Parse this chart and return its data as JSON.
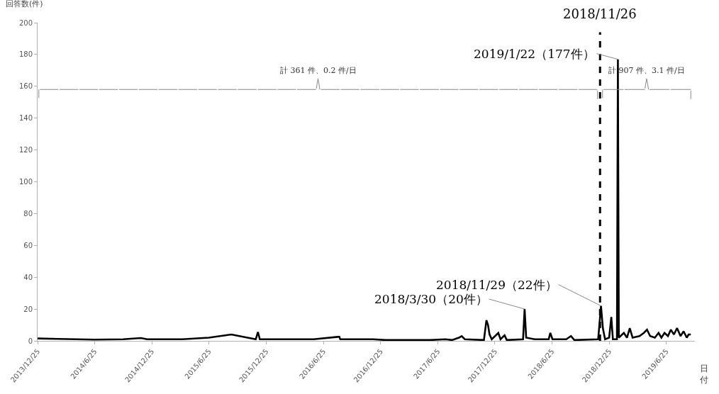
{
  "chart_data": {
    "type": "line",
    "ylabel": "回答数(件)",
    "xlabel": "日付",
    "x": [
      "2013-12-25",
      "2014-03-01",
      "2014-06-25",
      "2014-09-25",
      "2014-11-20",
      "2014-12-10",
      "2015-04-01",
      "2015-06-25",
      "2015-09-05",
      "2015-11-22",
      "2015-11-29",
      "2015-12-05",
      "2016-05-25",
      "2016-08-10",
      "2016-08-15",
      "2016-08-18",
      "2016-12-01",
      "2017-01-10",
      "2017-06-01",
      "2017-07-20",
      "2017-08-10",
      "2017-09-01",
      "2017-09-10",
      "2017-09-20",
      "2017-11-20",
      "2017-11-28",
      "2017-12-03",
      "2017-12-08",
      "2017-12-15",
      "2018-01-05",
      "2018-01-12",
      "2018-01-25",
      "2018-02-01",
      "2018-03-25",
      "2018-03-30",
      "2018-04-04",
      "2018-05-01",
      "2018-06-15",
      "2018-06-20",
      "2018-06-27",
      "2018-08-10",
      "2018-08-25",
      "2018-09-05",
      "2018-11-20",
      "2018-11-29",
      "2018-12-05",
      "2018-12-12",
      "2018-12-25",
      "2019-01-01",
      "2019-01-06",
      "2019-01-19",
      "2019-01-22",
      "2019-01-25",
      "2019-02-10",
      "2019-02-20",
      "2019-03-01",
      "2019-03-10",
      "2019-04-01",
      "2019-04-15",
      "2019-04-25",
      "2019-05-05",
      "2019-05-20",
      "2019-06-01",
      "2019-06-10",
      "2019-06-20",
      "2019-07-01",
      "2019-07-10",
      "2019-07-20",
      "2019-07-30",
      "2019-08-10",
      "2019-08-20",
      "2019-08-30",
      "2019-09-05",
      "2019-09-12"
    ],
    "series": [
      {
        "color": "#000000",
        "values": [
          1.5,
          1.2,
          0.8,
          1,
          1.8,
          1,
          1,
          2,
          4,
          1,
          5.5,
          1,
          1,
          2.5,
          2.5,
          1,
          1,
          0.5,
          0.5,
          1,
          0.5,
          2,
          3,
          1,
          0.5,
          13,
          10,
          4,
          1,
          5,
          1,
          3.5,
          0.5,
          1,
          20,
          2,
          1,
          1,
          5,
          1,
          1,
          3,
          0.5,
          1,
          22,
          8,
          1,
          2,
          15,
          1,
          1,
          177,
          2,
          5,
          2,
          8,
          2,
          3,
          5,
          7,
          3,
          2,
          5,
          2,
          5,
          3,
          7,
          4,
          8,
          3,
          6,
          2,
          4,
          4
        ]
      }
    ],
    "xlim": [
      "2013-12-25",
      "2019-09-25"
    ],
    "xticks": [
      {
        "value": "2013-12-25",
        "label": "2013/12/25"
      },
      {
        "value": "2014-06-25",
        "label": "2014/6/25"
      },
      {
        "value": "2014-12-25",
        "label": "2014/12/25"
      },
      {
        "value": "2015-06-25",
        "label": "2015/6/25"
      },
      {
        "value": "2015-12-25",
        "label": "2015/12/25"
      },
      {
        "value": "2016-06-25",
        "label": "2016/6/25"
      },
      {
        "value": "2016-12-25",
        "label": "2016/12/25"
      },
      {
        "value": "2017-06-25",
        "label": "2017/6/25"
      },
      {
        "value": "2017-12-25",
        "label": "2017/12/25"
      },
      {
        "value": "2018-06-25",
        "label": "2018/6/25"
      },
      {
        "value": "2018-12-25",
        "label": "2018/12/25"
      },
      {
        "value": "2019-06-25",
        "label": "2019/6/25"
      }
    ],
    "ylim": [
      0,
      200
    ],
    "yticks": [
      0,
      20,
      40,
      60,
      80,
      100,
      120,
      140,
      160,
      180,
      200
    ],
    "marker": "none",
    "line_style": "solid",
    "ref_lines": [
      {
        "axis": "x",
        "value": "2018-11-26",
        "label": "2018/11/26",
        "color": "#000000",
        "line_style": "dashed"
      }
    ],
    "annotations": [
      {
        "text": "2019/1/22（177件）",
        "x": "2019-01-22",
        "y": 177
      },
      {
        "text": "2018/11/29（22件）",
        "x": "2018-11-29",
        "y": 22
      },
      {
        "text": "2018/3/30（20件）",
        "x": "2018-03-30",
        "y": 20
      },
      "計 361 件、0.2 件/日",
      "計 907 件、3.1 件/日"
    ]
  }
}
